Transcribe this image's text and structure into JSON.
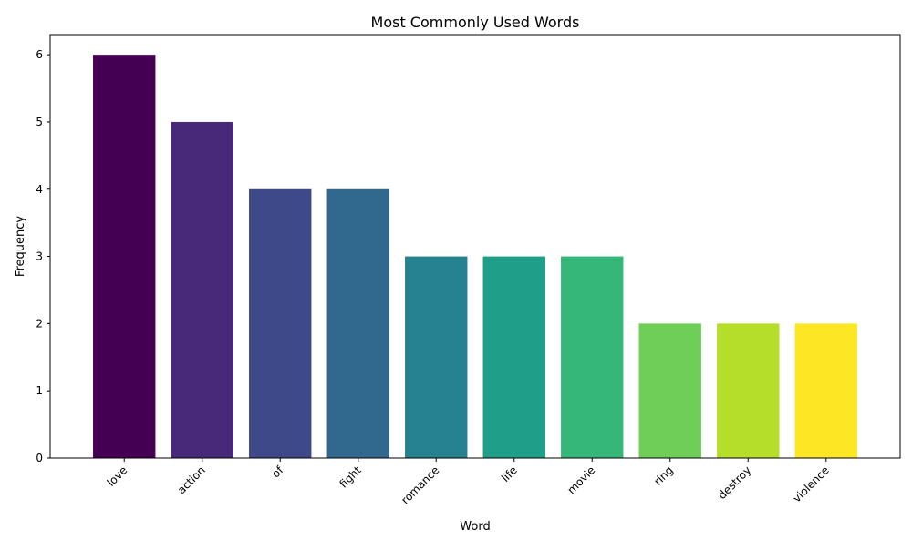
{
  "chart_data": {
    "type": "bar",
    "title": "Most Commonly Used Words",
    "xlabel": "Word",
    "ylabel": "Frequency",
    "categories": [
      "love",
      "action",
      "of",
      "fight",
      "romance",
      "life",
      "movie",
      "ring",
      "destroy",
      "violence"
    ],
    "values": [
      6,
      5,
      4,
      4,
      3,
      3,
      3,
      2,
      2,
      2
    ],
    "colors": [
      "#440154",
      "#482878",
      "#3e4989",
      "#31688e",
      "#26828e",
      "#1f9e89",
      "#35b779",
      "#6ece58",
      "#b5de2b",
      "#fde725"
    ],
    "ylim": [
      0,
      6.3
    ],
    "yticks": [
      0,
      1,
      2,
      3,
      4,
      5,
      6
    ],
    "grid": false,
    "legend": "none"
  }
}
